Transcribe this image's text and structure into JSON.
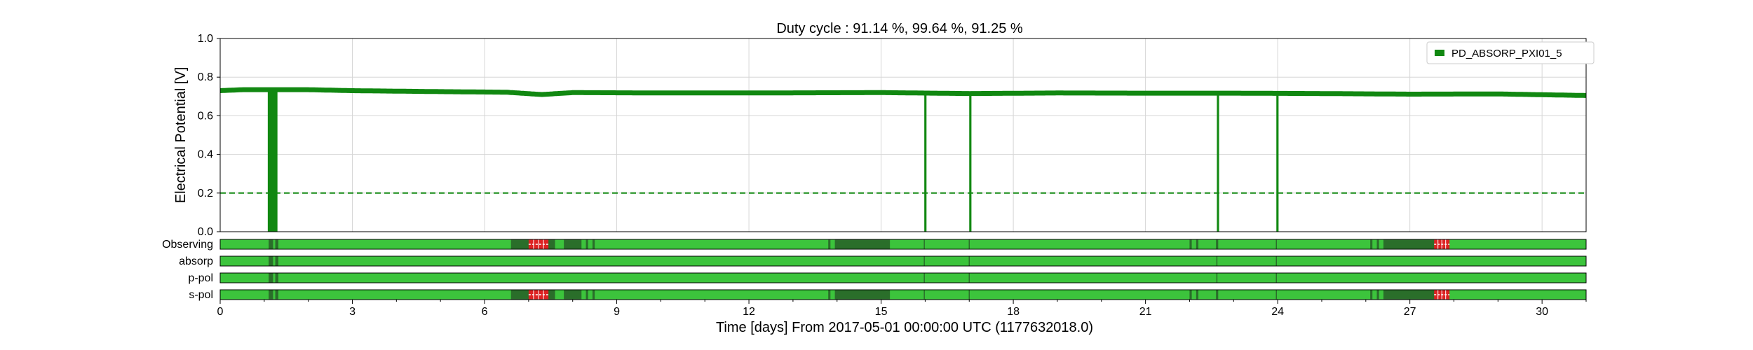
{
  "chart_data": {
    "type": "line",
    "title": "Duty cycle : 91.14 %, 99.64 %, 91.25 %",
    "xlabel": "Time [days] From 2017-05-01 00:00:00 UTC (1177632018.0)",
    "ylabel": "Electrical Potential [V]",
    "xlim": [
      0,
      31
    ],
    "ylim": [
      0,
      1.0
    ],
    "x_ticks": [
      0,
      3,
      6,
      9,
      12,
      15,
      18,
      21,
      24,
      27,
      30
    ],
    "y_ticks": [
      0.0,
      0.2,
      0.4,
      0.6,
      0.8,
      1.0
    ],
    "grid": true,
    "legend": {
      "position": "top-right",
      "entries": [
        "PD_ABSORP_PXI01_5"
      ]
    },
    "series": [
      {
        "name": "PD_ABSORP_PXI01_5",
        "color": "#118811",
        "baseline": [
          [
            0,
            0.73
          ],
          [
            0.5,
            0.735
          ],
          [
            2,
            0.735
          ],
          [
            3,
            0.73
          ],
          [
            5,
            0.725
          ],
          [
            6.5,
            0.722
          ],
          [
            7.3,
            0.71
          ],
          [
            8,
            0.72
          ],
          [
            10,
            0.718
          ],
          [
            12,
            0.718
          ],
          [
            15,
            0.72
          ],
          [
            17,
            0.715
          ],
          [
            19,
            0.718
          ],
          [
            21,
            0.717
          ],
          [
            23,
            0.717
          ],
          [
            25,
            0.715
          ],
          [
            27,
            0.712
          ],
          [
            29,
            0.713
          ],
          [
            31,
            0.705
          ]
        ],
        "drops": [
          {
            "start": 1.08,
            "end": 1.3,
            "value": 0.0
          },
          {
            "start": 15.98,
            "end": 16.03,
            "value": 0.0
          },
          {
            "start": 17.0,
            "end": 17.05,
            "value": 0.0
          },
          {
            "start": 22.62,
            "end": 22.67,
            "value": 0.0
          },
          {
            "start": 23.97,
            "end": 24.02,
            "value": 0.0
          }
        ]
      }
    ],
    "threshold": {
      "value": 0.2,
      "style": "dashed",
      "color": "#118811"
    },
    "segment_rows": [
      {
        "label": "Observing",
        "off": [
          [
            1.1,
            1.2
          ],
          [
            1.25,
            1.32
          ],
          [
            6.6,
            7.6
          ],
          [
            7.8,
            8.2
          ],
          [
            8.3,
            8.35
          ],
          [
            8.45,
            8.5
          ],
          [
            13.8,
            13.85
          ],
          [
            13.95,
            15.2
          ],
          [
            22.0,
            22.05
          ],
          [
            22.15,
            22.2
          ],
          [
            22.6,
            22.65
          ],
          [
            26.1,
            26.15
          ],
          [
            26.25,
            26.3
          ],
          [
            26.4,
            27.6
          ]
        ],
        "flags": [
          [
            7.0,
            7.45
          ],
          [
            27.55,
            27.9
          ]
        ]
      },
      {
        "label": "absorp",
        "off": [
          [
            1.1,
            1.2
          ],
          [
            1.25,
            1.32
          ]
        ],
        "flags": []
      },
      {
        "label": "p-pol",
        "off": [
          [
            1.1,
            1.2
          ],
          [
            1.25,
            1.32
          ]
        ],
        "flags": []
      },
      {
        "label": "s-pol",
        "off": [
          [
            1.1,
            1.2
          ],
          [
            1.25,
            1.32
          ],
          [
            6.6,
            7.6
          ],
          [
            7.8,
            8.2
          ],
          [
            8.3,
            8.35
          ],
          [
            8.45,
            8.5
          ],
          [
            13.8,
            13.85
          ],
          [
            13.95,
            15.2
          ],
          [
            22.0,
            22.05
          ],
          [
            22.15,
            22.2
          ],
          [
            22.6,
            22.65
          ],
          [
            26.1,
            26.15
          ],
          [
            26.25,
            26.3
          ],
          [
            26.4,
            27.6
          ]
        ],
        "flags": [
          [
            7.0,
            7.45
          ],
          [
            27.55,
            27.9
          ]
        ]
      }
    ],
    "segment_colors": {
      "active": "#3cc43c",
      "inactive": "#2a6e2a",
      "flag": "#dd2222",
      "flag_stripe": "#ffffff"
    }
  }
}
